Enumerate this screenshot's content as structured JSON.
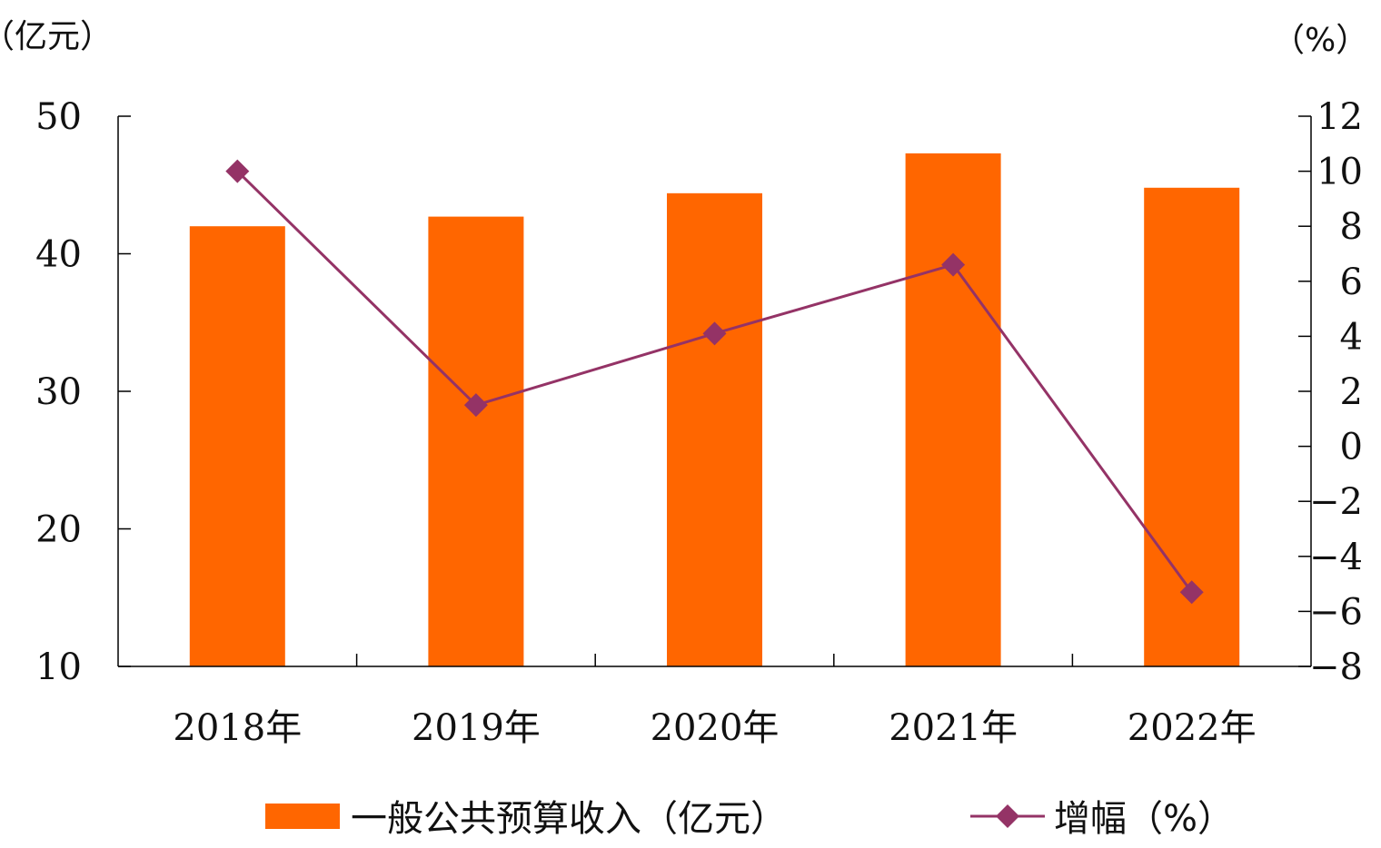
{
  "chart_data": {
    "type": "bar",
    "categories": [
      "2018年",
      "2019年",
      "2020年",
      "2021年",
      "2022年"
    ],
    "series": [
      {
        "name": "一般公共预算收入（亿元）",
        "type": "bar",
        "axis": "left",
        "color": "#ff6600",
        "values": [
          42.0,
          42.7,
          44.4,
          47.3,
          44.8
        ]
      },
      {
        "name": "增幅（%）",
        "type": "line",
        "axis": "right",
        "color": "#943366",
        "marker": "diamond",
        "values": [
          10.0,
          1.5,
          4.1,
          6.6,
          -5.3
        ]
      }
    ],
    "left_axis": {
      "unit_label": "（亿元）",
      "ylim": [
        10,
        50
      ],
      "ticks": [
        "10",
        "20",
        "30",
        "40",
        "50"
      ]
    },
    "right_axis": {
      "unit_label": "（%）",
      "ylim": [
        -8,
        12
      ],
      "ticks": [
        "-8",
        "-6",
        "-4",
        "-2",
        "0",
        "2",
        "4",
        "6",
        "8",
        "10",
        "12"
      ]
    },
    "grid": false,
    "legend_position": "bottom"
  }
}
